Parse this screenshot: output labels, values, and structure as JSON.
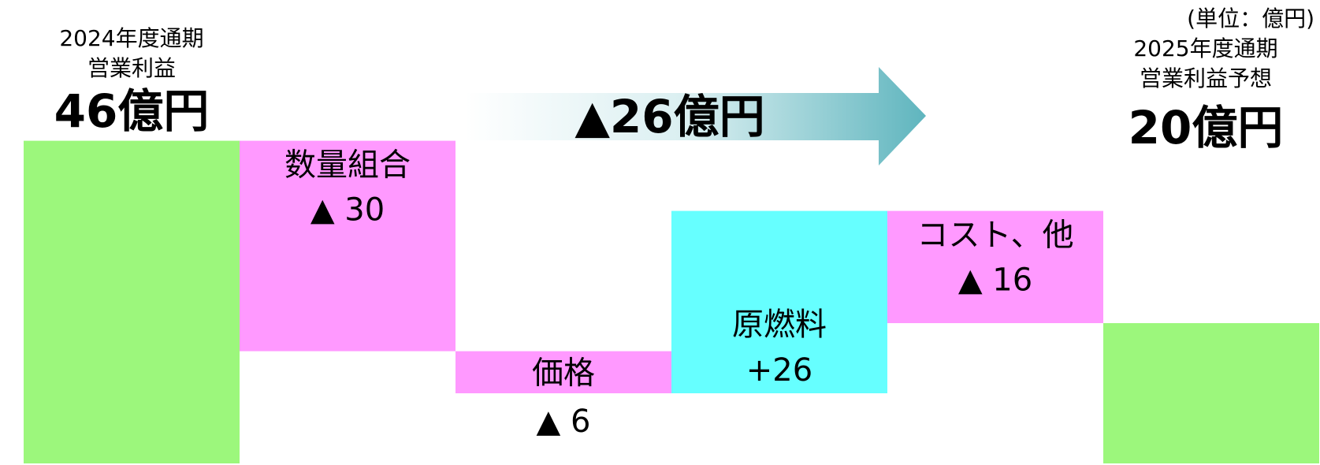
{
  "chart_data": {
    "type": "waterfall",
    "unit_note": "(単位：億円)",
    "start": {
      "label_lines": [
        "2024年度通期",
        "営業利益"
      ],
      "value": 46,
      "value_label": "46億円",
      "color": "#9cf77c"
    },
    "categories": [
      "数量組合",
      "価格",
      "原燃料",
      "コスト、他"
    ],
    "values": [
      -30,
      -6,
      26,
      -16
    ],
    "value_labels": [
      "▲ 30",
      "▲ 6",
      "+26",
      "▲ 16"
    ],
    "negative_color": "#ff99ff",
    "positive_color": "#66ffff",
    "end": {
      "label_lines": [
        "2025年度通期",
        "営業利益予想"
      ],
      "value": 20,
      "value_label": "20億円",
      "color": "#9cf77c"
    },
    "total_change": {
      "value": -26,
      "label": "▲26億円"
    }
  }
}
